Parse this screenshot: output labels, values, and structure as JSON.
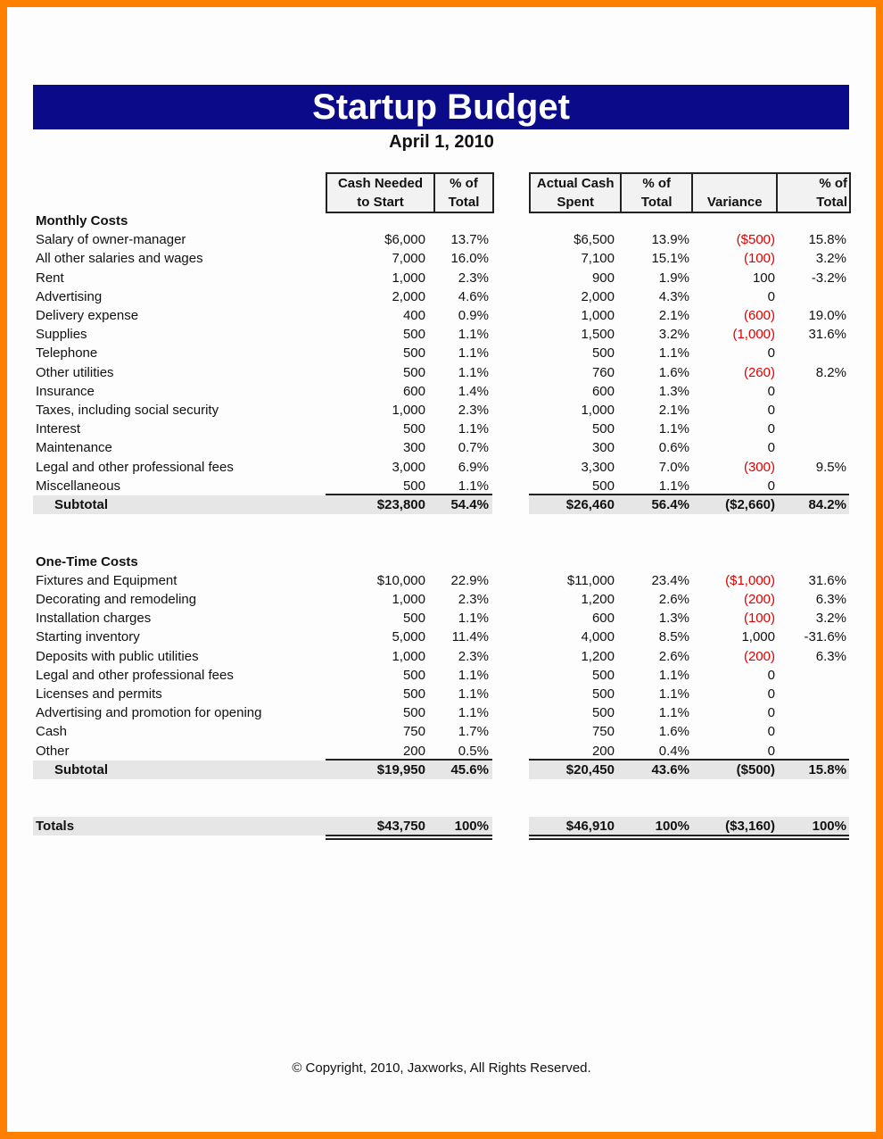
{
  "title": "Startup Budget",
  "date": "April 1, 2010",
  "headers": {
    "group1": [
      [
        "Cash Needed",
        "to Start"
      ],
      [
        "% of",
        "Total"
      ]
    ],
    "group2": [
      [
        "Actual Cash",
        "Spent"
      ],
      [
        "% of",
        "Total"
      ],
      [
        "",
        "Variance"
      ],
      [
        "% of",
        "Total"
      ]
    ]
  },
  "colors": {
    "title_bar": "#0b0b8a",
    "frame": "#ff8000",
    "negative": "#e00000"
  },
  "sections": [
    {
      "heading": "Monthly Costs",
      "rows": [
        [
          "Salary of owner-manager",
          "$6,000",
          "13.7%",
          "$6,500",
          "13.9%",
          "($500)",
          "15.8%"
        ],
        [
          "All other salaries and wages",
          "7,000",
          "16.0%",
          "7,100",
          "15.1%",
          "(100)",
          "3.2%"
        ],
        [
          "Rent",
          "1,000",
          "2.3%",
          "900",
          "1.9%",
          "100",
          "-3.2%"
        ],
        [
          "Advertising",
          "2,000",
          "4.6%",
          "2,000",
          "4.3%",
          "0",
          ""
        ],
        [
          "Delivery expense",
          "400",
          "0.9%",
          "1,000",
          "2.1%",
          "(600)",
          "19.0%"
        ],
        [
          "Supplies",
          "500",
          "1.1%",
          "1,500",
          "3.2%",
          "(1,000)",
          "31.6%"
        ],
        [
          "Telephone",
          "500",
          "1.1%",
          "500",
          "1.1%",
          "0",
          ""
        ],
        [
          "Other utilities",
          "500",
          "1.1%",
          "760",
          "1.6%",
          "(260)",
          "8.2%"
        ],
        [
          "Insurance",
          "600",
          "1.4%",
          "600",
          "1.3%",
          "0",
          ""
        ],
        [
          "Taxes, including social security",
          "1,000",
          "2.3%",
          "1,000",
          "2.1%",
          "0",
          ""
        ],
        [
          "Interest",
          "500",
          "1.1%",
          "500",
          "1.1%",
          "0",
          ""
        ],
        [
          "Maintenance",
          "300",
          "0.7%",
          "300",
          "0.6%",
          "0",
          ""
        ],
        [
          "Legal and other professional fees",
          "3,000",
          "6.9%",
          "3,300",
          "7.0%",
          "(300)",
          "9.5%"
        ],
        [
          "Miscellaneous",
          "500",
          "1.1%",
          "500",
          "1.1%",
          "0",
          ""
        ]
      ],
      "subtotal": [
        "Subtotal",
        "$23,800",
        "54.4%",
        "$26,460",
        "56.4%",
        "($2,660)",
        "84.2%"
      ]
    },
    {
      "heading": "One-Time Costs",
      "rows": [
        [
          "Fixtures and Equipment",
          "$10,000",
          "22.9%",
          "$11,000",
          "23.4%",
          "($1,000)",
          "31.6%"
        ],
        [
          "Decorating and remodeling",
          "1,000",
          "2.3%",
          "1,200",
          "2.6%",
          "(200)",
          "6.3%"
        ],
        [
          "Installation charges",
          "500",
          "1.1%",
          "600",
          "1.3%",
          "(100)",
          "3.2%"
        ],
        [
          "Starting inventory",
          "5,000",
          "11.4%",
          "4,000",
          "8.5%",
          "1,000",
          "-31.6%"
        ],
        [
          "Deposits with public utilities",
          "1,000",
          "2.3%",
          "1,200",
          "2.6%",
          "(200)",
          "6.3%"
        ],
        [
          "Legal and other professional fees",
          "500",
          "1.1%",
          "500",
          "1.1%",
          "0",
          ""
        ],
        [
          "Licenses and permits",
          "500",
          "1.1%",
          "500",
          "1.1%",
          "0",
          ""
        ],
        [
          "Advertising and promotion for opening",
          "500",
          "1.1%",
          "500",
          "1.1%",
          "0",
          ""
        ],
        [
          "Cash",
          "750",
          "1.7%",
          "750",
          "1.6%",
          "0",
          ""
        ],
        [
          "Other",
          "200",
          "0.5%",
          "200",
          "0.4%",
          "0",
          ""
        ]
      ],
      "subtotal": [
        "Subtotal",
        "$19,950",
        "45.6%",
        "$20,450",
        "43.6%",
        "($500)",
        "15.8%"
      ]
    }
  ],
  "totals": [
    "Totals",
    "$43,750",
    "100%",
    "$46,910",
    "100%",
    "($3,160)",
    "100%"
  ],
  "footer": "© Copyright, 2010, Jaxworks, All Rights Reserved."
}
